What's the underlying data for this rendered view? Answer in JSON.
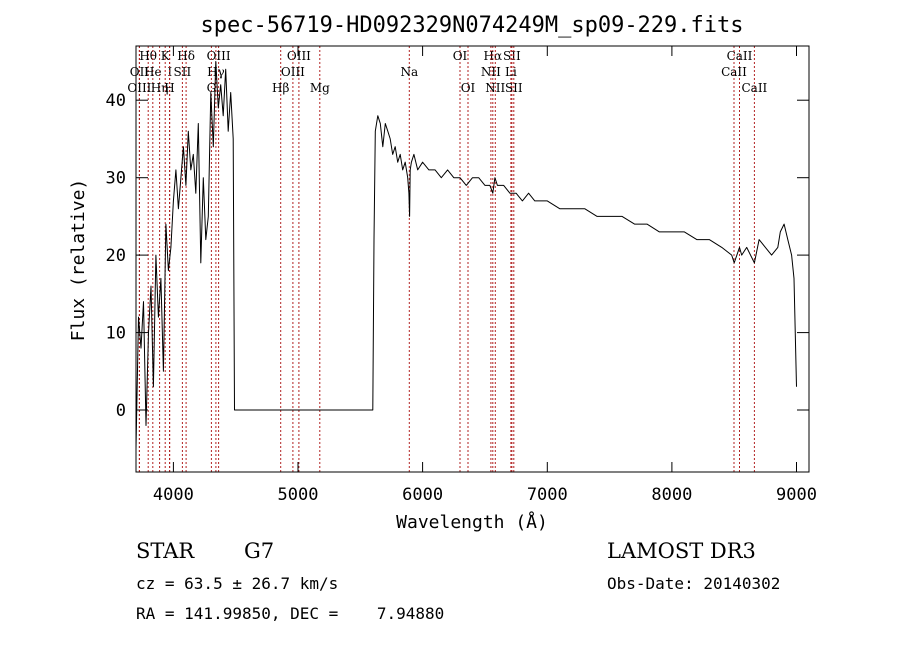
{
  "chart_data": {
    "type": "line",
    "title": "spec-56719-HD092329N074249M_sp09-229.fits",
    "xlabel": "Wavelength (Å)",
    "ylabel": "Flux (relative)",
    "xlim": [
      3700,
      9100
    ],
    "ylim": [
      -8,
      47
    ],
    "x_ticks": [
      4000,
      5000,
      6000,
      7000,
      8000,
      9000
    ],
    "y_ticks": [
      0,
      10,
      20,
      30,
      40
    ],
    "grid": false,
    "series": [
      {
        "name": "flux",
        "x": [
          3700,
          3720,
          3740,
          3760,
          3780,
          3800,
          3820,
          3840,
          3860,
          3880,
          3900,
          3920,
          3940,
          3960,
          3980,
          4000,
          4020,
          4040,
          4060,
          4080,
          4100,
          4120,
          4140,
          4160,
          4180,
          4200,
          4220,
          4240,
          4260,
          4280,
          4300,
          4320,
          4340,
          4360,
          4380,
          4400,
          4420,
          4440,
          4460,
          4480,
          4490,
          4500,
          5000,
          5500,
          5600,
          5610,
          5620,
          5640,
          5660,
          5680,
          5700,
          5720,
          5740,
          5760,
          5780,
          5800,
          5820,
          5840,
          5860,
          5880,
          5890,
          5895,
          5900,
          5910,
          5930,
          5960,
          6000,
          6050,
          6100,
          6150,
          6200,
          6250,
          6300,
          6350,
          6400,
          6450,
          6500,
          6540,
          6563,
          6580,
          6600,
          6650,
          6700,
          6750,
          6800,
          6850,
          6900,
          6950,
          7000,
          7100,
          7200,
          7300,
          7400,
          7500,
          7600,
          7700,
          7800,
          7900,
          8000,
          8100,
          8200,
          8300,
          8400,
          8480,
          8500,
          8542,
          8560,
          8600,
          8662,
          8700,
          8750,
          8800,
          8850,
          8870,
          8900,
          8930,
          8960,
          8980,
          9000
        ],
        "values": [
          -5,
          12,
          8,
          14,
          -2,
          10,
          16,
          3,
          20,
          12,
          17,
          5,
          24,
          18,
          21,
          27,
          31,
          26,
          30,
          34,
          29,
          36,
          31,
          33,
          28,
          37,
          19,
          30,
          22,
          25,
          41,
          34,
          45,
          39,
          42,
          38,
          44,
          36,
          41,
          35,
          0,
          0,
          0,
          0,
          0,
          22,
          36,
          38,
          37,
          34,
          37,
          36,
          35,
          33,
          34,
          32,
          33,
          31,
          32,
          30,
          28,
          25,
          31,
          32,
          33,
          31,
          32,
          31,
          31,
          30,
          31,
          30,
          30,
          29,
          30,
          30,
          29,
          29,
          28,
          30,
          29,
          29,
          28,
          28,
          27,
          28,
          27,
          27,
          27,
          26,
          26,
          26,
          25,
          25,
          25,
          24,
          24,
          23,
          23,
          23,
          22,
          22,
          21,
          20,
          19,
          21,
          20,
          21,
          19,
          22,
          21,
          20,
          21,
          23,
          24,
          22,
          20,
          17,
          3
        ]
      }
    ],
    "spectral_lines": [
      {
        "label": "Hθ",
        "wave": 3798,
        "row": 0
      },
      {
        "label": "OII",
        "wave": 3727,
        "row": 1
      },
      {
        "label": "OIII",
        "wave": 3727,
        "row": 2
      },
      {
        "label": "He",
        "wave": 3835,
        "row": 1
      },
      {
        "label": "Hη",
        "wave": 3889,
        "row": 2
      },
      {
        "label": "K",
        "wave": 3934,
        "row": 0
      },
      {
        "label": "I",
        "wave": 3970,
        "row": 1
      },
      {
        "label": "H",
        "wave": 3969,
        "row": 2
      },
      {
        "label": "Hδ",
        "wave": 4102,
        "row": 0
      },
      {
        "label": "SII",
        "wave": 4072,
        "row": 1
      },
      {
        "label": "OIII",
        "wave": 4363,
        "row": 0
      },
      {
        "label": "Hγ",
        "wave": 4341,
        "row": 1
      },
      {
        "label": "G",
        "wave": 4305,
        "row": 2
      },
      {
        "label": "OIII",
        "wave": 5007,
        "row": 0
      },
      {
        "label": "OIII",
        "wave": 4959,
        "row": 1
      },
      {
        "label": "Hβ",
        "wave": 4861,
        "row": 2
      },
      {
        "label": "Mg",
        "wave": 5175,
        "row": 2
      },
      {
        "label": "Na",
        "wave": 5893,
        "row": 1
      },
      {
        "label": "OI",
        "wave": 6300,
        "row": 0
      },
      {
        "label": "OI",
        "wave": 6364,
        "row": 2
      },
      {
        "label": "Hα",
        "wave": 6563,
        "row": 0
      },
      {
        "label": "NII",
        "wave": 6548,
        "row": 1
      },
      {
        "label": "NII",
        "wave": 6583,
        "row": 2
      },
      {
        "label": "SII",
        "wave": 6716,
        "row": 0
      },
      {
        "label": "Li",
        "wave": 6708,
        "row": 1
      },
      {
        "label": "SII",
        "wave": 6731,
        "row": 2
      },
      {
        "label": "CaII",
        "wave": 8542,
        "row": 0
      },
      {
        "label": "CaII",
        "wave": 8498,
        "row": 1
      },
      {
        "label": "CaII",
        "wave": 8662,
        "row": 2
      }
    ]
  },
  "info": {
    "object_class": "STAR",
    "subclass": "G7",
    "survey": "LAMOST DR3",
    "redshift": "cz = 63.5 ± 26.7 km/s",
    "obs_date": "Obs-Date: 20140302",
    "coords": "RA = 141.99850, DEC =    7.94880"
  },
  "colors": {
    "line_marker": "#b22222",
    "spectrum": "#000000"
  }
}
